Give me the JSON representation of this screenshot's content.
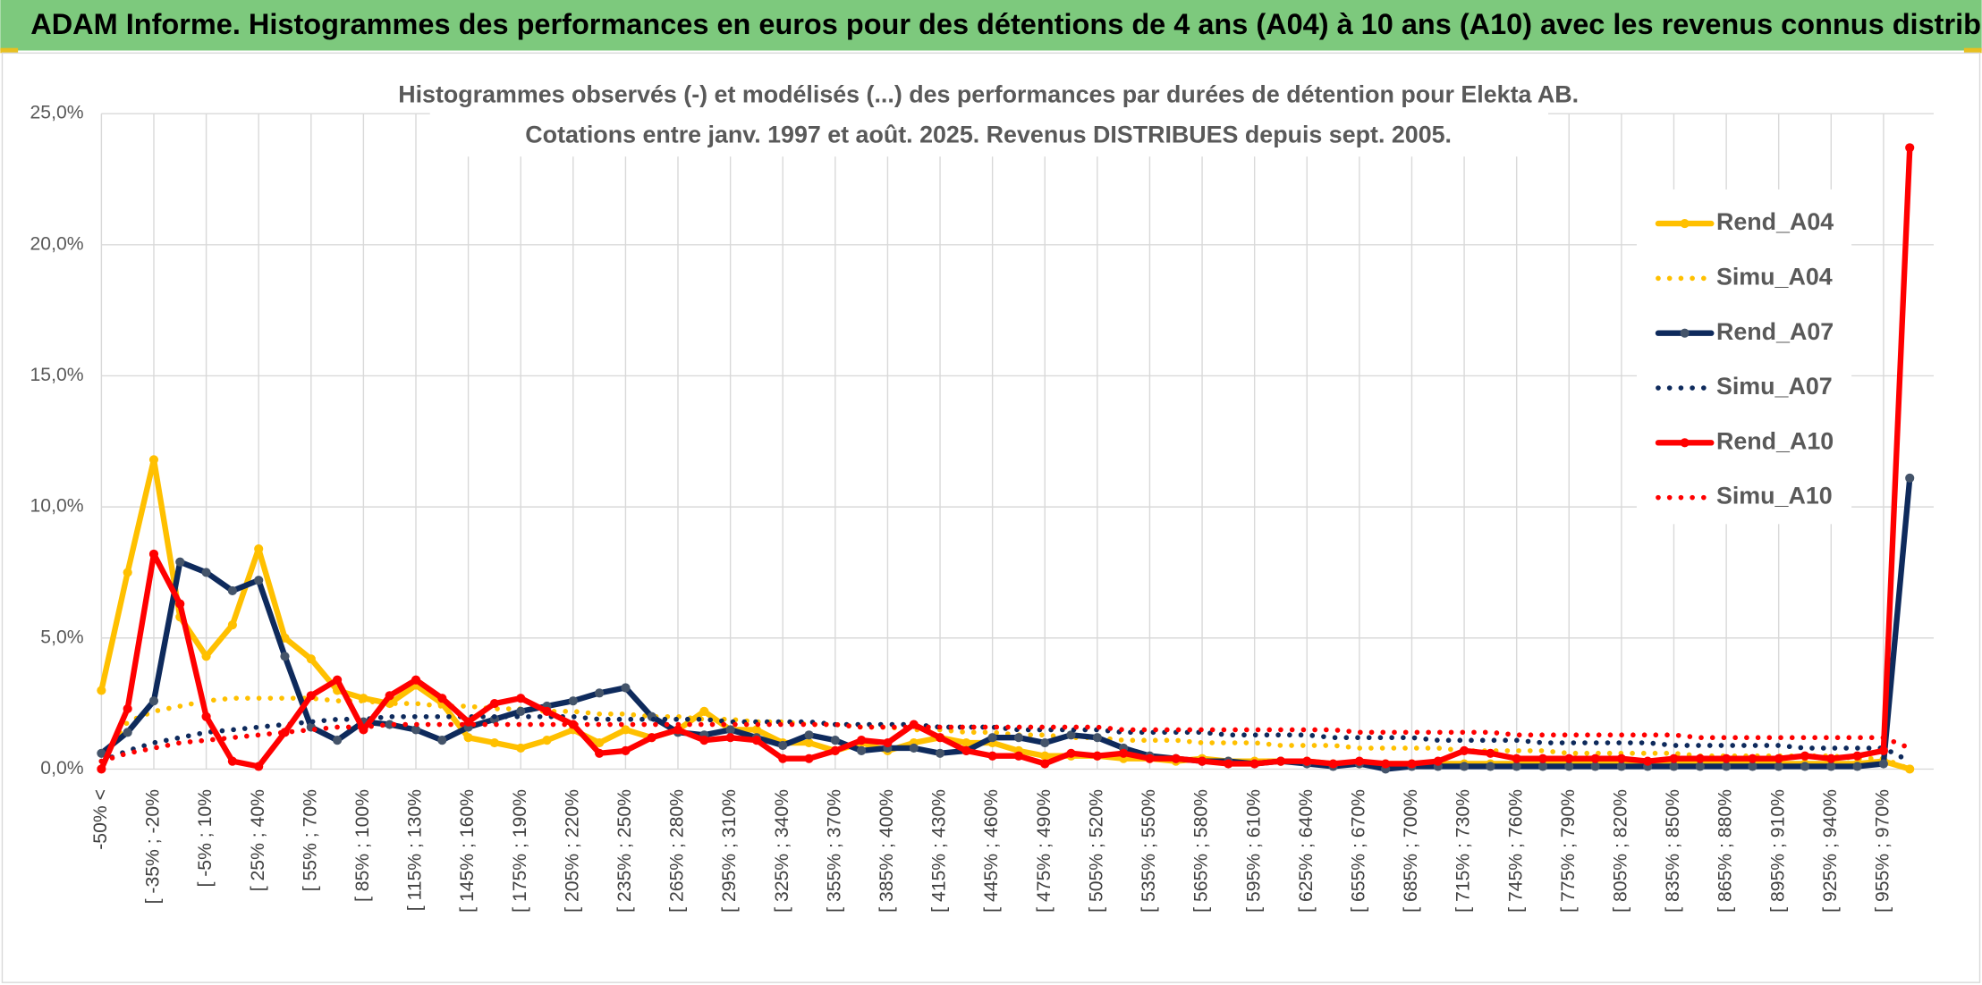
{
  "header": {
    "title": "ADAM Informe. Histogrammes des performances en euros pour des détentions de 4 ans (A04) à 10 ans (A10) avec les revenus connus distribués"
  },
  "chart_data": {
    "type": "line",
    "title": "Histogrammes observés (-) et modélisés (...) des performances par durées de détention pour Elekta AB.",
    "subtitle": "Cotations entre janv. 1997 et août. 2025. Revenus DISTRIBUES depuis sept. 2005.",
    "categories": [
      "-50% <",
      null,
      "[ -35% ; -20%",
      null,
      "[ -5% ; 10%",
      null,
      "[ 25% ; 40%",
      null,
      "[ 55% ; 70%",
      null,
      "[ 85% ; 100%",
      null,
      "[ 115% ; 130%",
      null,
      "[ 145% ; 160%",
      null,
      "[ 175% ; 190%",
      null,
      "[ 205% ; 220%",
      null,
      "[ 235% ; 250%",
      null,
      "[ 265% ; 280%",
      null,
      "[ 295% ; 310%",
      null,
      "[ 325% ; 340%",
      null,
      "[ 355% ; 370%",
      null,
      "[ 385% ; 400%",
      null,
      "[ 415% ; 430%",
      null,
      "[ 445% ; 460%",
      null,
      "[ 475% ; 490%",
      null,
      "[ 505% ; 520%",
      null,
      "[ 535% ; 550%",
      null,
      "[ 565% ; 580%",
      null,
      "[ 595% ; 610%",
      null,
      "[ 625% ; 640%",
      null,
      "[ 655% ; 670%",
      null,
      "[ 685% ; 700%",
      null,
      "[ 715% ; 730%",
      null,
      "[ 745% ; 760%",
      null,
      "[ 775% ; 790%",
      null,
      "[ 805% ; 820%",
      null,
      "[ 835% ; 850%",
      null,
      "[ 865% ; 880%",
      null,
      "[ 895% ; 910%",
      null,
      "[ 925% ; 940%",
      null,
      "[ 955% ; 970%",
      null
    ],
    "series": [
      {
        "name": "Rend_A04",
        "color": "#ffc000",
        "style": "solid",
        "markers": true,
        "values": [
          3.0,
          7.5,
          11.8,
          5.8,
          4.3,
          5.5,
          8.4,
          5.0,
          4.2,
          3.0,
          2.7,
          2.5,
          3.2,
          2.5,
          1.2,
          1.0,
          0.8,
          1.1,
          1.5,
          1.0,
          1.5,
          1.2,
          1.5,
          2.2,
          1.5,
          1.5,
          1.0,
          1.0,
          0.7,
          1.0,
          0.7,
          1.0,
          1.2,
          1.0,
          1.0,
          0.7,
          0.5,
          0.5,
          0.5,
          0.4,
          0.4,
          0.3,
          0.4,
          0.3,
          0.3,
          0.3,
          0.3,
          0.2,
          0.2,
          0.2,
          0.2,
          0.2,
          0.2,
          0.2,
          0.2,
          0.2,
          0.2,
          0.2,
          0.2,
          0.2,
          0.2,
          0.2,
          0.2,
          0.2,
          0.2,
          0.2,
          0.2,
          0.2,
          0.3,
          0.0
        ]
      },
      {
        "name": "Simu_A04",
        "color": "#ffc000",
        "style": "dotted",
        "markers": false,
        "values": [
          0.3,
          1.8,
          2.2,
          2.4,
          2.6,
          2.7,
          2.7,
          2.7,
          2.7,
          2.6,
          2.6,
          2.5,
          2.5,
          2.4,
          2.4,
          2.3,
          2.3,
          2.2,
          2.2,
          2.1,
          2.1,
          2.0,
          2.0,
          1.9,
          1.9,
          1.8,
          1.8,
          1.7,
          1.7,
          1.6,
          1.6,
          1.5,
          1.5,
          1.4,
          1.4,
          1.3,
          1.3,
          1.2,
          1.2,
          1.1,
          1.1,
          1.1,
          1.0,
          1.0,
          1.0,
          0.9,
          0.9,
          0.9,
          0.8,
          0.8,
          0.8,
          0.8,
          0.7,
          0.7,
          0.7,
          0.7,
          0.6,
          0.6,
          0.6,
          0.6,
          0.6,
          0.5,
          0.5,
          0.5,
          0.5,
          0.5,
          0.5,
          0.4,
          0.4,
          0.0
        ]
      },
      {
        "name": "Rend_A07",
        "color": "#0e2a5c",
        "style": "solid",
        "markers": true,
        "values": [
          0.6,
          1.4,
          2.6,
          7.9,
          7.5,
          6.8,
          7.2,
          4.3,
          1.6,
          1.1,
          1.8,
          1.7,
          1.5,
          1.1,
          1.6,
          1.9,
          2.2,
          2.4,
          2.6,
          2.9,
          3.1,
          2.0,
          1.4,
          1.3,
          1.5,
          1.2,
          0.9,
          1.3,
          1.1,
          0.7,
          0.8,
          0.8,
          0.6,
          0.7,
          1.2,
          1.2,
          1.0,
          1.3,
          1.2,
          0.8,
          0.5,
          0.4,
          0.3,
          0.3,
          0.2,
          0.3,
          0.2,
          0.1,
          0.2,
          0.0,
          0.1,
          0.1,
          0.1,
          0.1,
          0.1,
          0.1,
          0.1,
          0.1,
          0.1,
          0.1,
          0.1,
          0.1,
          0.1,
          0.1,
          0.1,
          0.1,
          0.1,
          0.1,
          0.2,
          11.1
        ]
      },
      {
        "name": "Simu_A07",
        "color": "#0e2a5c",
        "style": "dotted",
        "markers": false,
        "values": [
          0.3,
          0.7,
          1.0,
          1.2,
          1.4,
          1.5,
          1.6,
          1.7,
          1.8,
          1.9,
          1.9,
          2.0,
          2.0,
          2.0,
          2.0,
          2.0,
          2.0,
          2.0,
          2.0,
          1.9,
          1.9,
          1.9,
          1.9,
          1.9,
          1.8,
          1.8,
          1.8,
          1.8,
          1.7,
          1.7,
          1.7,
          1.7,
          1.6,
          1.6,
          1.6,
          1.5,
          1.5,
          1.5,
          1.5,
          1.4,
          1.4,
          1.4,
          1.4,
          1.3,
          1.3,
          1.3,
          1.3,
          1.2,
          1.2,
          1.2,
          1.2,
          1.1,
          1.1,
          1.1,
          1.1,
          1.0,
          1.0,
          1.0,
          1.0,
          1.0,
          0.9,
          0.9,
          0.9,
          0.9,
          0.9,
          0.8,
          0.8,
          0.8,
          0.8,
          0.3
        ]
      },
      {
        "name": "Rend_A10",
        "color": "#ff0000",
        "style": "solid",
        "markers": true,
        "values": [
          0.0,
          2.3,
          8.2,
          6.3,
          2.0,
          0.3,
          0.1,
          1.4,
          2.8,
          3.4,
          1.5,
          2.8,
          3.4,
          2.7,
          1.8,
          2.5,
          2.7,
          2.2,
          1.7,
          0.6,
          0.7,
          1.2,
          1.5,
          1.1,
          1.2,
          1.1,
          0.4,
          0.4,
          0.7,
          1.1,
          1.0,
          1.7,
          1.2,
          0.7,
          0.5,
          0.5,
          0.2,
          0.6,
          0.5,
          0.6,
          0.4,
          0.4,
          0.3,
          0.2,
          0.2,
          0.3,
          0.3,
          0.2,
          0.3,
          0.2,
          0.2,
          0.3,
          0.7,
          0.6,
          0.4,
          0.4,
          0.4,
          0.4,
          0.4,
          0.3,
          0.4,
          0.4,
          0.4,
          0.4,
          0.4,
          0.5,
          0.4,
          0.5,
          0.7,
          23.7
        ]
      },
      {
        "name": "Simu_A10",
        "color": "#ff0000",
        "style": "dotted",
        "markers": false,
        "values": [
          0.3,
          0.6,
          0.8,
          1.0,
          1.1,
          1.2,
          1.3,
          1.4,
          1.5,
          1.6,
          1.6,
          1.7,
          1.7,
          1.7,
          1.7,
          1.7,
          1.7,
          1.7,
          1.7,
          1.7,
          1.7,
          1.7,
          1.7,
          1.7,
          1.7,
          1.7,
          1.7,
          1.7,
          1.7,
          1.6,
          1.6,
          1.6,
          1.6,
          1.6,
          1.6,
          1.6,
          1.6,
          1.6,
          1.6,
          1.5,
          1.5,
          1.5,
          1.5,
          1.5,
          1.5,
          1.5,
          1.5,
          1.5,
          1.4,
          1.4,
          1.4,
          1.4,
          1.4,
          1.4,
          1.3,
          1.3,
          1.3,
          1.3,
          1.3,
          1.3,
          1.3,
          1.2,
          1.2,
          1.2,
          1.2,
          1.2,
          1.2,
          1.2,
          1.2,
          0.8
        ]
      }
    ],
    "ylim": [
      0,
      25
    ],
    "yticks": [
      {
        "value": 0,
        "label": "0,0%"
      },
      {
        "value": 5,
        "label": "5,0%"
      },
      {
        "value": 10,
        "label": "10,0%"
      },
      {
        "value": 15,
        "label": "15,0%"
      },
      {
        "value": 20,
        "label": "20,0%"
      },
      {
        "value": 25,
        "label": "25,0%"
      }
    ],
    "grid": true,
    "legend": "right"
  }
}
